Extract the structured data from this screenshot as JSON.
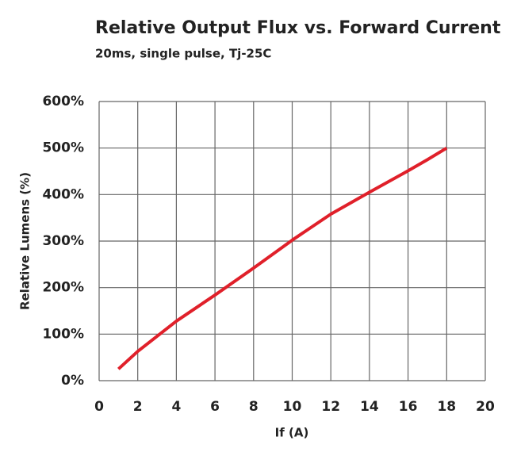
{
  "chart_data": {
    "type": "line",
    "title": "Relative Output Flux vs. Forward Current",
    "subtitle": "20ms, single pulse, Tj-25C",
    "x_label": "If (A)",
    "y_label": "Relative Lumens (%)",
    "x": [
      1,
      2,
      4,
      6,
      8,
      10,
      12,
      14,
      16,
      17,
      18
    ],
    "series": [
      {
        "name": "Relative Lumens",
        "color": "#e0202a",
        "values": [
          25,
          63,
          128,
          184,
          242,
          302,
          358,
          405,
          451,
          475,
          500
        ]
      }
    ],
    "xlim": [
      0,
      20
    ],
    "xticks": [
      0,
      2,
      4,
      6,
      8,
      10,
      12,
      14,
      16,
      18,
      20
    ],
    "ylim": [
      0,
      600
    ],
    "yticks": [
      {
        "value": 0,
        "label": "0%"
      },
      {
        "value": 100,
        "label": "100%"
      },
      {
        "value": 200,
        "label": "200%"
      },
      {
        "value": 300,
        "label": "300%"
      },
      {
        "value": 400,
        "label": "400%"
      },
      {
        "value": 500,
        "label": "500%"
      },
      {
        "value": 600,
        "label": "600%"
      }
    ],
    "grid": true
  }
}
